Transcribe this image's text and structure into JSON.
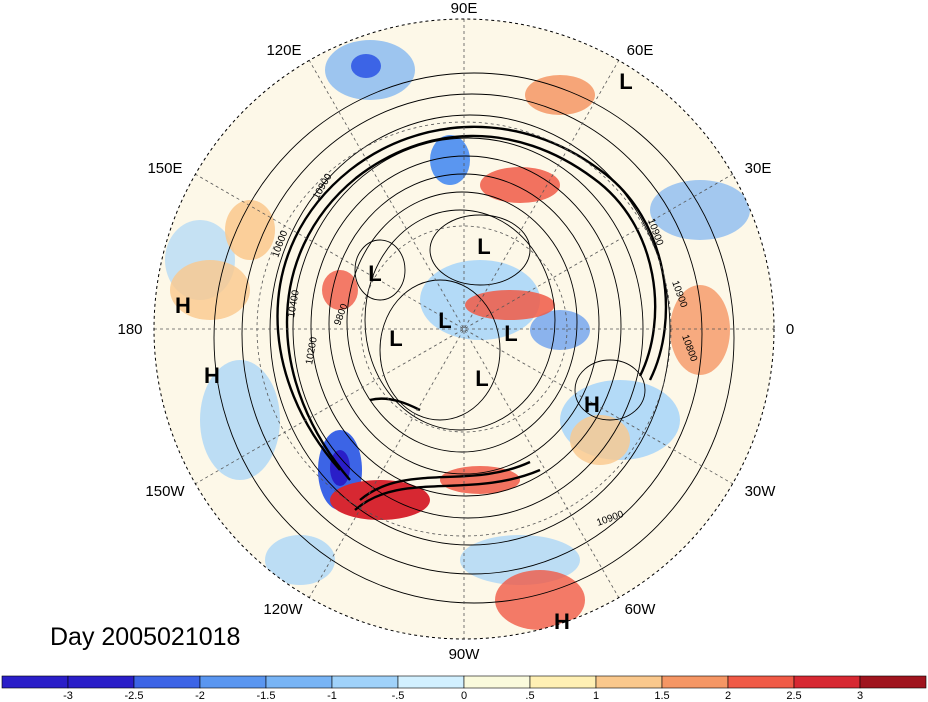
{
  "title": "Day 2005021018",
  "longitude_labels": [
    "90E",
    "60E",
    "30E",
    "0",
    "30W",
    "60W",
    "90W",
    "120W",
    "150W",
    "180",
    "150E",
    "120E"
  ],
  "pressure_systems": [
    "L",
    "H",
    "H",
    "L",
    "L",
    "L",
    "L",
    "L",
    "L",
    "H",
    "H"
  ],
  "contour_labels": [
    "10900",
    "10400",
    "9800",
    "10200",
    "10600",
    "10900",
    "10900",
    "10800",
    "10900"
  ],
  "colorbar": {
    "ticks": [
      "-3",
      "-2.5",
      "-2",
      "-1.5",
      "-1",
      "-.5",
      "0",
      ".5",
      "1",
      "1.5",
      "2",
      "2.5",
      "3"
    ],
    "colors": [
      "#2a1ec8",
      "#3c64e6",
      "#5a96f0",
      "#78b4f5",
      "#a0d2fa",
      "#d2f0ff",
      "#fafadc",
      "#fff0b4",
      "#fac88c",
      "#f59664",
      "#f05a46",
      "#d72832",
      "#a0141e"
    ]
  }
}
